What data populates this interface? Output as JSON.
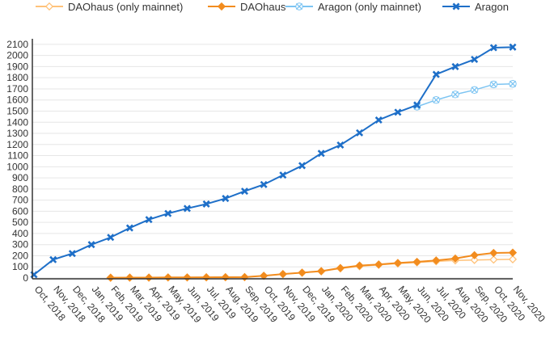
{
  "chart_data": {
    "type": "line",
    "title": "",
    "xlabel": "",
    "ylabel": "",
    "ylim": [
      0,
      2150
    ],
    "yticks": [
      0,
      100,
      200,
      300,
      400,
      500,
      600,
      700,
      800,
      900,
      1000,
      1100,
      1200,
      1300,
      1400,
      1500,
      1600,
      1700,
      1800,
      1900,
      2000,
      2100
    ],
    "categories": [
      "Oct, 2018",
      "Nov, 2018",
      "Dec, 2018",
      "Jan, 2019",
      "Feb, 2019",
      "Mar, 2019",
      "Apr, 2019",
      "May, 2019",
      "Jun, 2019",
      "Jul, 2019",
      "Aug, 2019",
      "Sep, 2019",
      "Oct, 2019",
      "Nov, 2019",
      "Dec, 2019",
      "Jan, 2020",
      "Feb, 2020",
      "Mar, 2020",
      "Apr, 2020",
      "May, 2020",
      "Jun, 2020",
      "Jul, 2020",
      "Aug, 2020",
      "Sep, 2020",
      "Oct, 2020",
      "Nov, 2020"
    ],
    "legend_position": "top",
    "series": [
      {
        "name": "DAOhaus (only mainnet)",
        "color": "#ffc27a",
        "marker": "diamond-open",
        "values": [
          null,
          null,
          null,
          null,
          3,
          4,
          4,
          5,
          5,
          6,
          7,
          8,
          20,
          35,
          48,
          60,
          85,
          105,
          118,
          130,
          140,
          150,
          158,
          162,
          165,
          168
        ]
      },
      {
        "name": "DAOhaus",
        "color": "#f28c1e",
        "marker": "diamond",
        "values": [
          null,
          null,
          null,
          null,
          3,
          4,
          4,
          5,
          5,
          6,
          7,
          8,
          20,
          35,
          48,
          62,
          90,
          112,
          122,
          135,
          145,
          158,
          175,
          205,
          225,
          228
        ]
      },
      {
        "name": "Aragon (only mainnet)",
        "color": "#7cc4f2",
        "marker": "x-open",
        "values": [
          null,
          null,
          null,
          null,
          null,
          null,
          null,
          null,
          null,
          null,
          null,
          null,
          null,
          null,
          null,
          null,
          null,
          null,
          null,
          null,
          1540,
          1600,
          1650,
          1690,
          1740,
          1745
        ]
      },
      {
        "name": "Aragon",
        "color": "#1e6fc8",
        "marker": "x",
        "values": [
          30,
          165,
          220,
          300,
          365,
          450,
          525,
          580,
          625,
          665,
          715,
          780,
          840,
          925,
          1010,
          1120,
          1195,
          1305,
          1420,
          1490,
          1555,
          1830,
          1900,
          1965,
          2070,
          2075
        ]
      }
    ]
  }
}
